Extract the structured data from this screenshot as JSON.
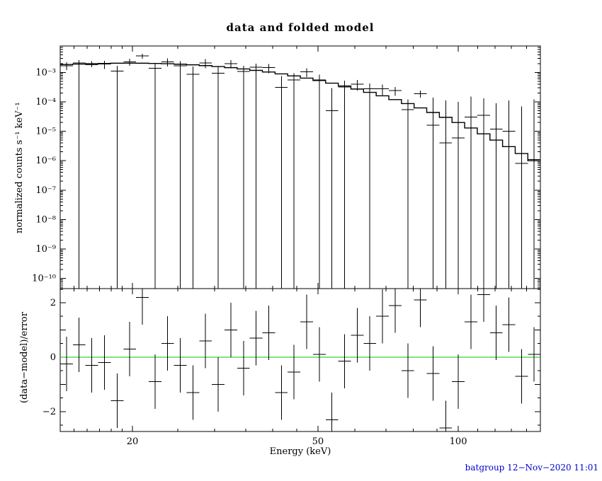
{
  "title": "data and folded model",
  "footer": "batgroup 12−Nov−2020 11:01",
  "colors": {
    "background": "#ffffff",
    "axis": "#000000",
    "data": "#000000",
    "model": "#000000",
    "zero_line": "#00c800",
    "footer_text": "#0000cd"
  },
  "chart_data": {
    "type": "scatter",
    "title": "data and folded model",
    "xlabel": "Energy (keV)",
    "ylabel_top": "normalized counts s⁻¹ keV⁻¹",
    "ylabel_bottom": "(data−model)/error",
    "xscale": "log",
    "xlim": [
      14,
      150
    ],
    "top_yscale": "log",
    "top_ylim": [
      4.5e-11,
      0.0079
    ],
    "res_ylim": [
      -2.73,
      2.52
    ],
    "grid": false,
    "legend": false,
    "x_major": [
      20,
      50,
      100
    ],
    "x_major_labels": [
      "20",
      "50",
      "100"
    ],
    "x_minor": [
      15,
      16,
      17,
      18,
      19,
      25,
      30,
      35,
      40,
      45,
      60,
      70,
      80,
      90,
      110,
      120,
      130,
      140,
      150
    ],
    "top_ytick_values": [
      0.001,
      0.0001,
      1e-05,
      1e-06,
      1e-07,
      1e-08,
      1e-09,
      1e-10
    ],
    "top_ytick_labels": [
      "10⁻³",
      "10⁻⁴",
      "10⁻⁵",
      "10⁻⁶",
      "10⁻⁷",
      "10⁻⁸",
      "10⁻⁹",
      "10⁻¹⁰"
    ],
    "res_ytick_values": [
      2,
      0,
      -2
    ],
    "res_ytick_labels": [
      "2",
      "0",
      "−2"
    ],
    "bin_edges": [
      14,
      14.9,
      15.86,
      16.88,
      17.97,
      19.13,
      20.36,
      21.67,
      23.07,
      24.55,
      26.13,
      27.82,
      29.61,
      31.52,
      33.55,
      35.71,
      38.01,
      40.46,
      43.06,
      45.84,
      48.79,
      51.93,
      55.28,
      58.84,
      62.63,
      66.66,
      70.96,
      75.53,
      80.39,
      85.57,
      91.08,
      96.95,
      103.19,
      109.84,
      116.92,
      124.45,
      132.46,
      140.99,
      150
    ],
    "model": [
      0.00185,
      0.00192,
      0.00198,
      0.00202,
      0.00205,
      0.00206,
      0.00205,
      0.00202,
      0.00197,
      0.0019,
      0.00181,
      0.0017,
      0.00158,
      0.00145,
      0.00131,
      0.00117,
      0.00103,
      0.00089,
      0.00076,
      0.00064,
      0.00053,
      0.00043,
      0.000345,
      0.000272,
      0.00021,
      0.00016,
      0.000119,
      8.7e-05,
      6.2e-05,
      4.35e-05,
      2.97e-05,
      1.98e-05,
      1.29e-05,
      8.2e-06,
      5e-06,
      3e-06,
      1.75e-06,
      1e-06
    ],
    "data": [
      0.0017,
      0.0021,
      0.0018,
      0.0019,
      0.0011,
      0.0023,
      0.0036,
      0.0014,
      0.0023,
      0.0017,
      0.00087,
      0.0021,
      0.00095,
      0.002,
      0.00107,
      0.0015,
      0.00145,
      0.00031,
      0.00055,
      0.00105,
      0.00056,
      5e-05,
      0.00032,
      0.0004,
      0.00028,
      0.00028,
      0.00024,
      5.5e-05,
      0.00019,
      1.6e-05,
      4e-06,
      6e-06,
      3e-05,
      3.5e-05,
      1.2e-05,
      1e-05,
      8e-07,
      1.1e-06
    ],
    "err_up": [
      0.0022,
      0.0026,
      0.0024,
      0.0025,
      0.0017,
      0.0029,
      0.0043,
      0.0021,
      0.003,
      0.0024,
      0.0016,
      0.0028,
      0.0016,
      0.0026,
      0.0017,
      0.002,
      0.0019,
      0.00075,
      0.00093,
      0.0014,
      0.00085,
      0.00029,
      0.00053,
      0.00056,
      0.00042,
      0.00039,
      0.00032,
      0.00012,
      0.00024,
      0.00014,
      0.00011,
      0.0001,
      0.00015,
      0.00013,
      9e-05,
      0.00011,
      7e-05,
      0.00012
    ],
    "err_lo": [
      0.0012,
      null,
      0.0015,
      0.0013,
      null,
      0.0017,
      0.0029,
      null,
      0.0016,
      null,
      null,
      0.0014,
      null,
      0.0014,
      null,
      null,
      0.00095,
      null,
      null,
      0.0007,
      null,
      null,
      null,
      0.00024,
      null,
      0.00017,
      0.00016,
      null,
      0.00014,
      null,
      null,
      null,
      null,
      null,
      null,
      null,
      null,
      null
    ],
    "residuals": [
      -0.25,
      0.45,
      -0.3,
      -0.2,
      -1.6,
      0.3,
      2.2,
      -0.9,
      0.5,
      -0.3,
      -1.3,
      0.6,
      -1.0,
      1.0,
      -0.4,
      0.7,
      0.9,
      -1.3,
      -0.55,
      1.3,
      0.1,
      -2.3,
      -0.15,
      0.8,
      0.5,
      1.5,
      1.9,
      -0.5,
      2.1,
      -0.6,
      -2.6,
      -0.9,
      1.3,
      2.3,
      0.9,
      1.2,
      -0.7,
      0.1
    ],
    "residual_err": 1
  }
}
